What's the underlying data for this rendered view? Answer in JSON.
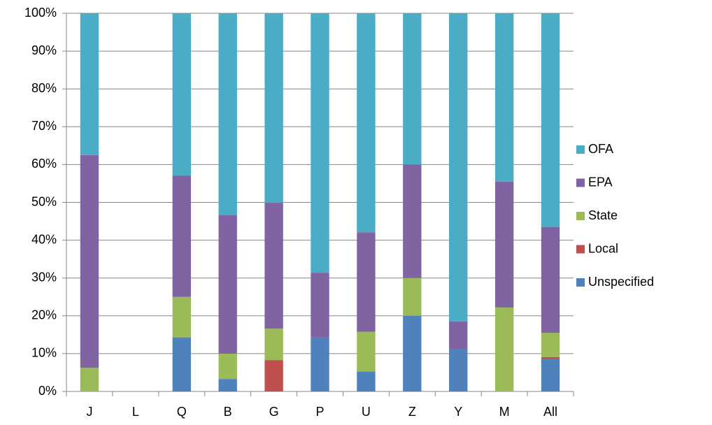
{
  "chart_data": {
    "type": "stacked_bar",
    "categories": [
      "J",
      "L",
      "Q",
      "B",
      "G",
      "P",
      "U",
      "Z",
      "Y",
      "M",
      "All"
    ],
    "series": [
      {
        "name": "Unspecified",
        "color": "#4f81bd",
        "values": [
          0,
          0,
          14.3,
          3.3,
          0,
          14.3,
          5.3,
          20,
          11.1,
          0,
          8.6
        ]
      },
      {
        "name": "Local",
        "color": "#c0504d",
        "values": [
          0,
          0,
          0,
          0,
          8.3,
          0,
          0,
          0,
          0,
          0,
          0.5
        ]
      },
      {
        "name": "State",
        "color": "#9bbb59",
        "values": [
          6.25,
          0,
          10.7,
          6.7,
          8.3,
          0,
          10.5,
          10,
          0,
          22.2,
          6.4
        ]
      },
      {
        "name": "EPA",
        "color": "#8064a2",
        "values": [
          56.25,
          0,
          32.1,
          36.7,
          33.3,
          17.1,
          26.3,
          30,
          7.4,
          33.3,
          28
        ]
      },
      {
        "name": "OFA",
        "color": "#4bacc6",
        "values": [
          37.5,
          0,
          42.9,
          53.3,
          50,
          68.6,
          57.9,
          40,
          81.5,
          44.4,
          56.5
        ]
      }
    ],
    "ylim": [
      0,
      100
    ],
    "yticks": [
      {
        "value": 0,
        "label": "0%"
      },
      {
        "value": 10,
        "label": "10%"
      },
      {
        "value": 20,
        "label": "20%"
      },
      {
        "value": 30,
        "label": "30%"
      },
      {
        "value": 40,
        "label": "40%"
      },
      {
        "value": 50,
        "label": "50%"
      },
      {
        "value": 60,
        "label": "60%"
      },
      {
        "value": 70,
        "label": "70%"
      },
      {
        "value": 80,
        "label": "80%"
      },
      {
        "value": 90,
        "label": "90%"
      },
      {
        "value": 100,
        "label": "100%"
      }
    ],
    "grid": true,
    "legend": "right"
  }
}
